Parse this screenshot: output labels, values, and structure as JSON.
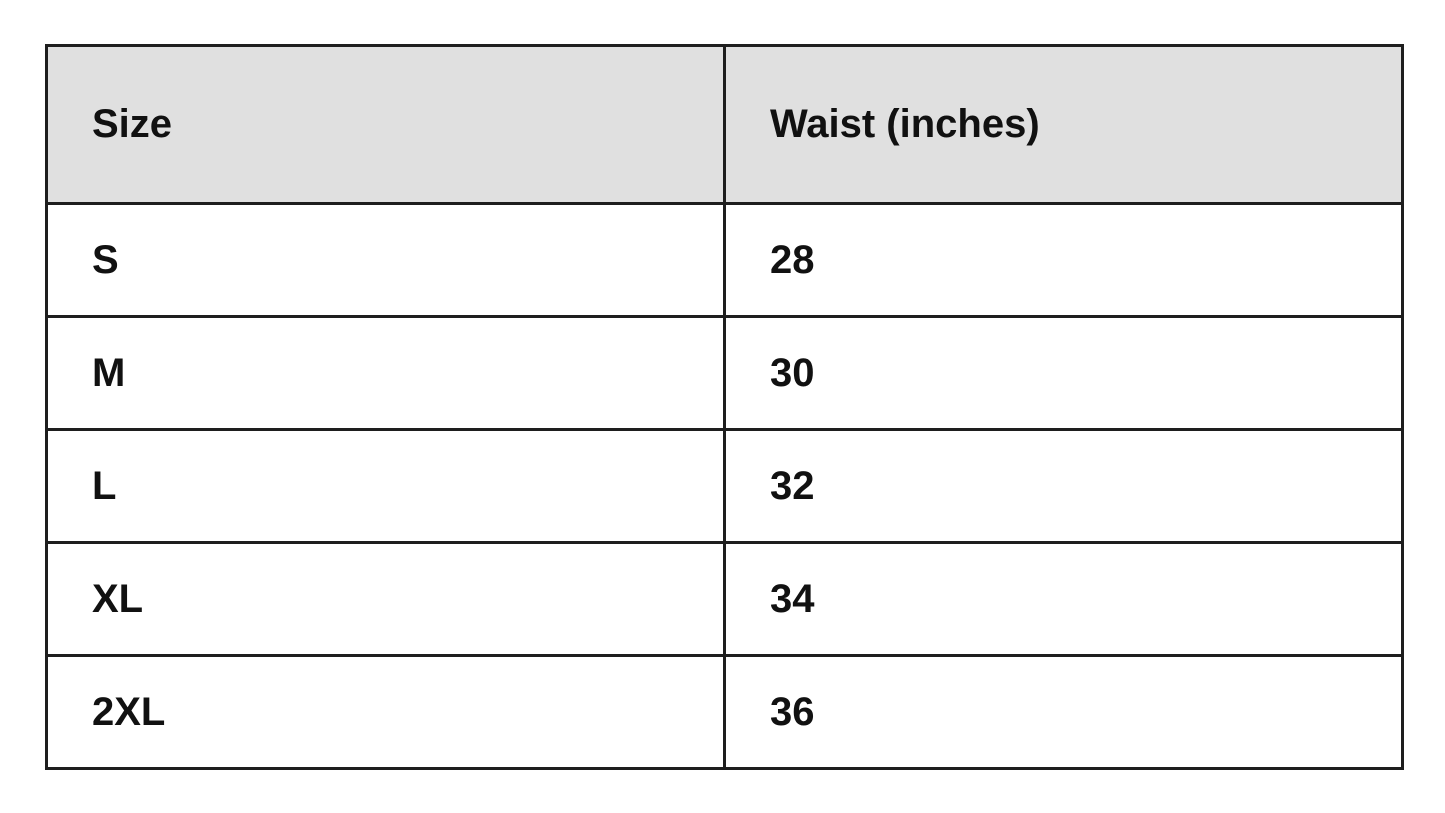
{
  "table": {
    "headers": [
      "Size",
      "Waist (inches)"
    ],
    "rows": [
      [
        "S",
        "28"
      ],
      [
        "M",
        "30"
      ],
      [
        "L",
        "32"
      ],
      [
        "XL",
        "34"
      ],
      [
        "2XL",
        "36"
      ]
    ],
    "header_bg": "#e0e0e0"
  }
}
